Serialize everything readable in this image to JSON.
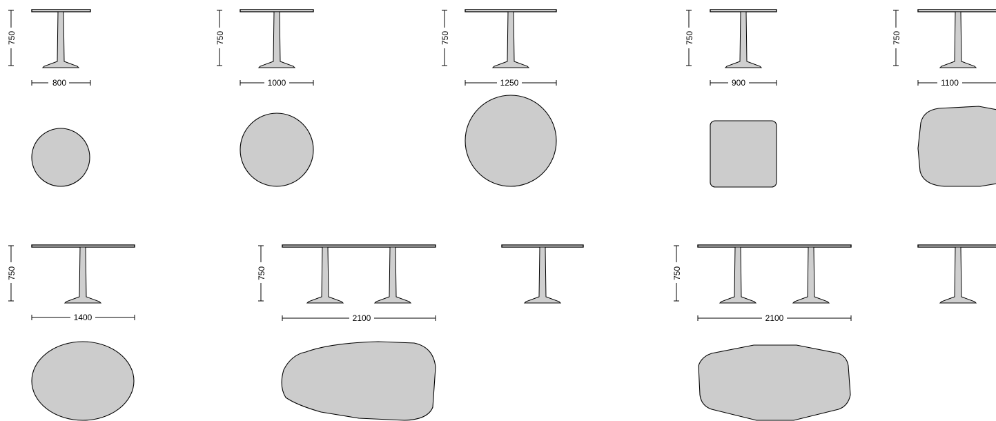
{
  "dimensions": {
    "height": "750",
    "w_800": "800",
    "w_1000": "1000",
    "w_1250": "1250",
    "w_900": "900",
    "w_1100": "1100",
    "w_1400": "1400",
    "w_2100_a": "2100",
    "w_2100_b": "2100"
  },
  "colors": {
    "plan_fill": "#cccccc",
    "leg_fill": "#cfcfcf",
    "line": "#000000"
  }
}
